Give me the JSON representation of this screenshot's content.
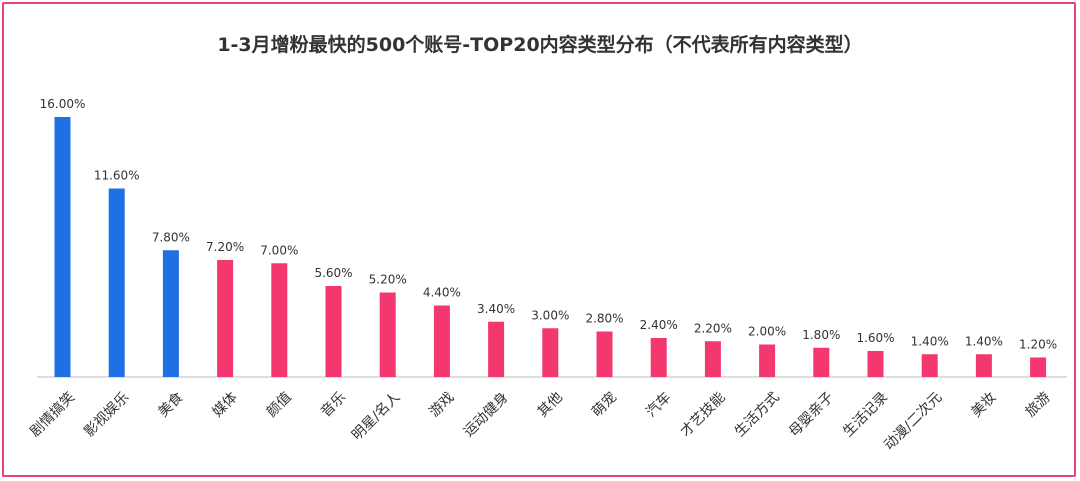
{
  "chart_data": {
    "type": "bar",
    "title": "1-3月增粉最快的500个账号-TOP20内容类型分布（不代表所有内容类型）",
    "xlabel": "",
    "ylabel": "",
    "ylim": [
      0,
      16
    ],
    "grid": false,
    "legend": "none",
    "categories": [
      "剧情搞笑",
      "影视娱乐",
      "美食",
      "媒体",
      "颜值",
      "音乐",
      "明星/名人",
      "游戏",
      "运动健身",
      "其他",
      "萌宠",
      "汽车",
      "才艺技能",
      "生活方式",
      "母婴亲子",
      "生活记录",
      "动漫/二次元",
      "美妆",
      "旅游"
    ],
    "values": [
      16.0,
      11.6,
      7.8,
      7.2,
      7.0,
      5.6,
      5.2,
      4.4,
      3.4,
      3.0,
      2.8,
      2.4,
      2.2,
      2.0,
      1.8,
      1.6,
      1.4,
      1.4,
      1.2
    ],
    "value_labels": [
      "16.00%",
      "11.60%",
      "7.80%",
      "7.20%",
      "7.00%",
      "5.60%",
      "5.20%",
      "4.40%",
      "3.40%",
      "3.00%",
      "2.80%",
      "2.40%",
      "2.20%",
      "2.00%",
      "1.80%",
      "1.60%",
      "1.40%",
      "1.40%",
      "1.20%"
    ],
    "highlight_count": 3,
    "colors": {
      "highlight": "#1f6fe5",
      "normal": "#f2386f",
      "axis": "#bdbdbd",
      "frame": "#e8457a"
    }
  }
}
